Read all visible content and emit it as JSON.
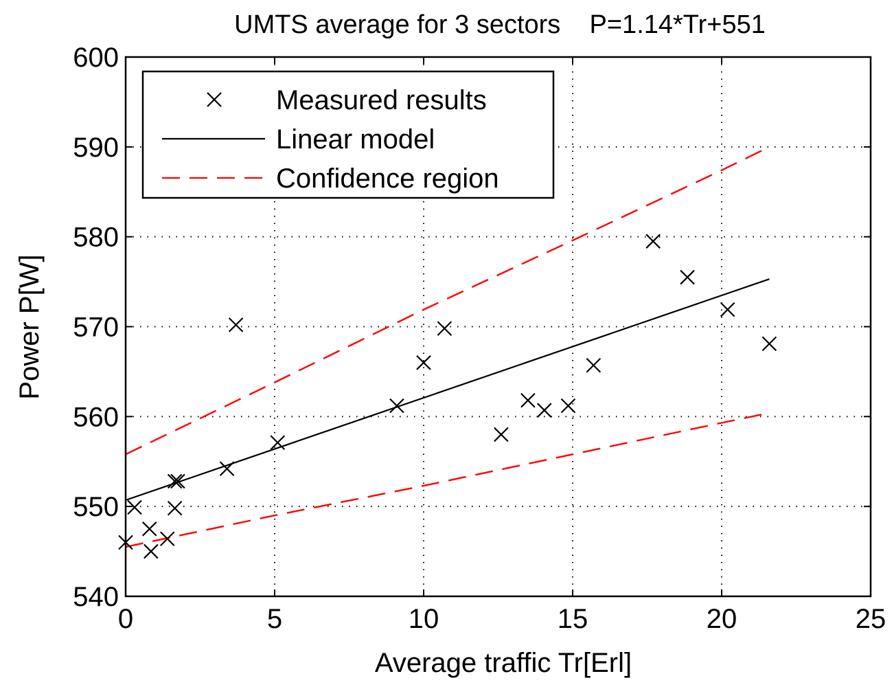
{
  "chart_data": {
    "type": "scatter",
    "title": "UMTS average for 3 sectors    P=1.14*Tr+551",
    "xlabel": "Average traffic Tr[Erl]",
    "ylabel": "Power P[W]",
    "xlim": [
      0,
      25
    ],
    "ylim": [
      540,
      600
    ],
    "xticks": [
      0,
      5,
      10,
      15,
      20,
      25
    ],
    "yticks": [
      540,
      550,
      560,
      570,
      580,
      590,
      600
    ],
    "xtick_labels": [
      "0",
      "5",
      "10",
      "15",
      "20",
      "25"
    ],
    "ytick_labels": [
      "540",
      "550",
      "560",
      "570",
      "580",
      "590",
      "600"
    ],
    "grid": true,
    "legend_position": "top-left",
    "series": [
      {
        "name": "Measured results",
        "kind": "scatter",
        "marker": "x",
        "color": "#000000",
        "x": [
          0.0,
          0.3,
          0.8,
          0.85,
          1.4,
          1.65,
          1.65,
          1.75,
          3.4,
          3.7,
          5.1,
          9.1,
          10.0,
          10.7,
          12.6,
          13.5,
          14.05,
          14.85,
          15.7,
          17.7,
          18.85,
          20.2,
          21.6
        ],
        "y": [
          546.0,
          549.9,
          547.5,
          545.0,
          546.4,
          549.8,
          552.8,
          552.8,
          554.2,
          570.2,
          557.1,
          561.2,
          566.0,
          569.8,
          558.0,
          561.8,
          560.7,
          561.2,
          565.7,
          579.5,
          575.5,
          571.9,
          568.1
        ]
      },
      {
        "name": "Linear model",
        "kind": "line",
        "dash": "solid",
        "color": "#000000",
        "x": [
          0,
          21.6
        ],
        "y": [
          550.7,
          575.3
        ]
      },
      {
        "name": "Confidence region",
        "kind": "line",
        "dash": "dashed",
        "color": "#ff0000",
        "x": [
          0,
          5,
          10,
          15,
          20,
          21.6
        ],
        "y": [
          555.8,
          563.8,
          571.9,
          579.6,
          587.4,
          590.0
        ]
      },
      {
        "name": "Confidence region (lower)",
        "kind": "line",
        "dash": "dashed",
        "color": "#ff0000",
        "legend": false,
        "x": [
          0,
          5,
          10,
          15,
          20,
          21.6
        ],
        "y": [
          545.5,
          549.0,
          552.3,
          555.8,
          559.3,
          560.4
        ]
      }
    ]
  }
}
